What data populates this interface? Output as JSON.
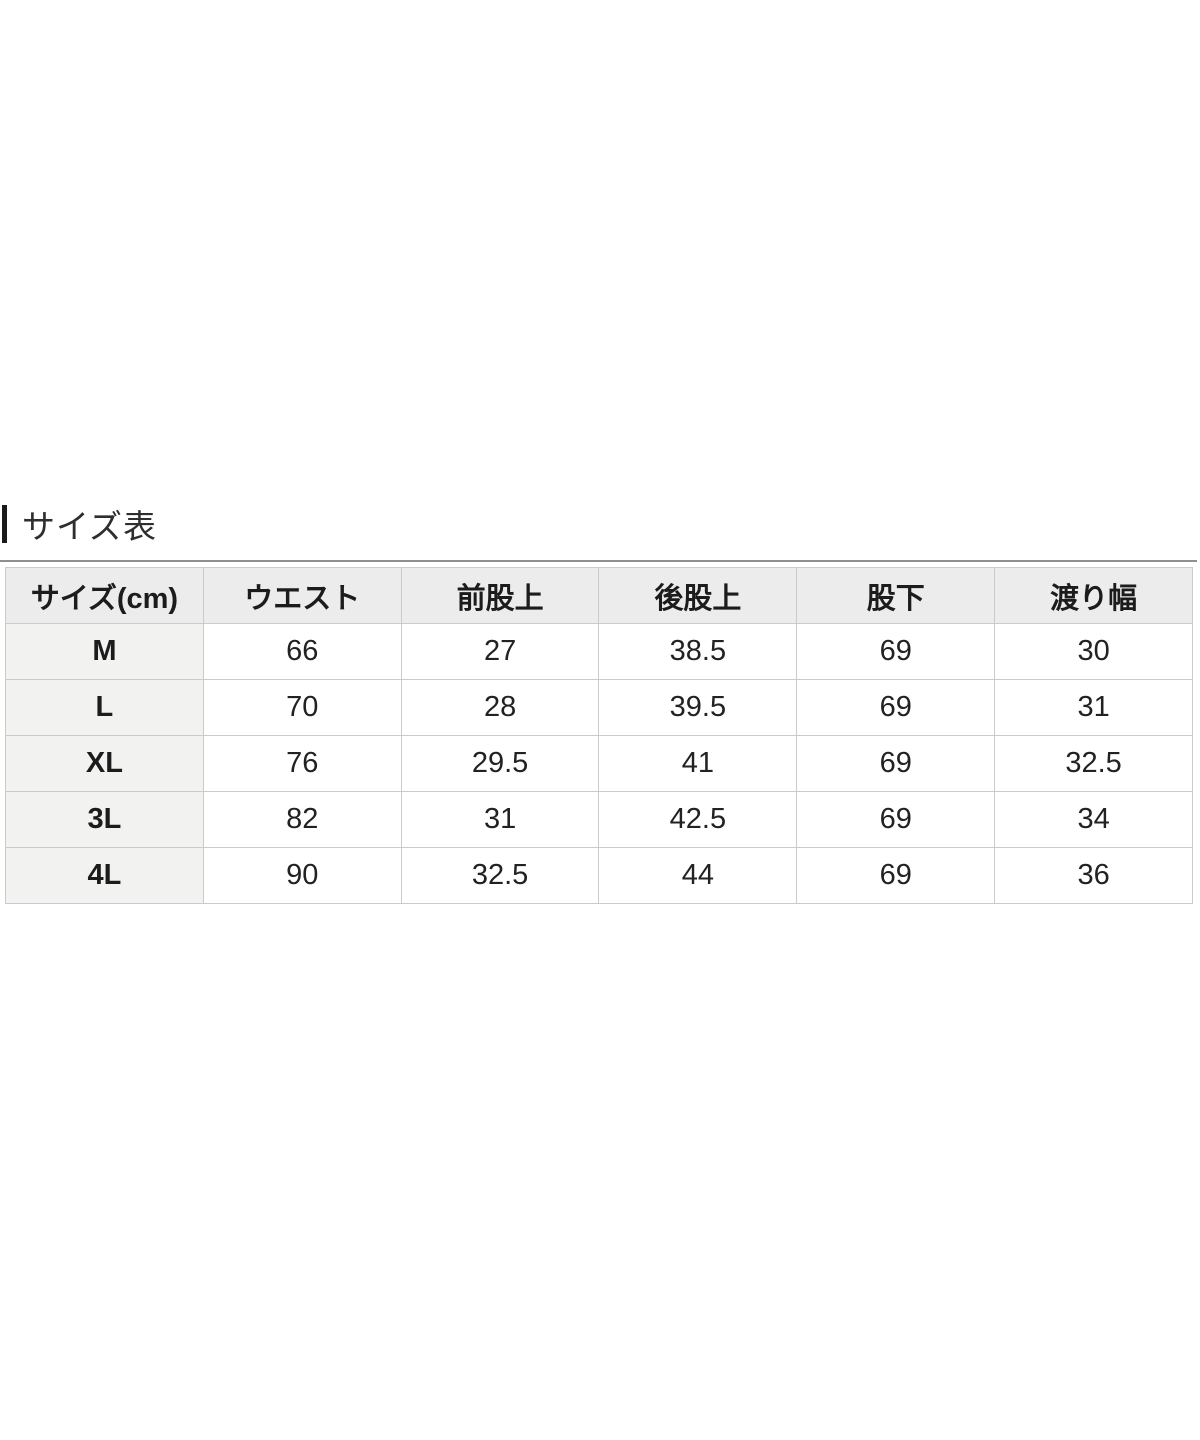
{
  "section": {
    "title": "サイズ表"
  },
  "table": {
    "headers": [
      "サイズ(cm)",
      "ウエスト",
      "前股上",
      "後股上",
      "股下",
      "渡り幅"
    ],
    "rows": [
      {
        "size": "M",
        "values": [
          "66",
          "27",
          "38.5",
          "69",
          "30"
        ]
      },
      {
        "size": "L",
        "values": [
          "70",
          "28",
          "39.5",
          "69",
          "31"
        ]
      },
      {
        "size": "XL",
        "values": [
          "76",
          "29.5",
          "41",
          "69",
          "32.5"
        ]
      },
      {
        "size": "3L",
        "values": [
          "82",
          "31",
          "42.5",
          "69",
          "34"
        ]
      },
      {
        "size": "4L",
        "values": [
          "90",
          "32.5",
          "44",
          "69",
          "36"
        ]
      }
    ]
  },
  "chart_data": {
    "type": "table",
    "title": "サイズ表",
    "columns": [
      "サイズ(cm)",
      "ウエスト",
      "前股上",
      "後股上",
      "股下",
      "渡り幅"
    ],
    "rows": [
      [
        "M",
        66,
        27,
        38.5,
        69,
        30
      ],
      [
        "L",
        70,
        28,
        39.5,
        69,
        31
      ],
      [
        "XL",
        76,
        29.5,
        41,
        69,
        32.5
      ],
      [
        "3L",
        82,
        31,
        42.5,
        69,
        34
      ],
      [
        "4L",
        90,
        32.5,
        44,
        69,
        36
      ]
    ]
  },
  "colors": {
    "header_background": "#ececec",
    "row_label_background": "#f2f2f1",
    "cell_border": "#cbcbcb",
    "divider": "#8f8f8f",
    "title_bar": "#1a1a1a",
    "text": "#222222",
    "page_background": "#ffffff"
  }
}
